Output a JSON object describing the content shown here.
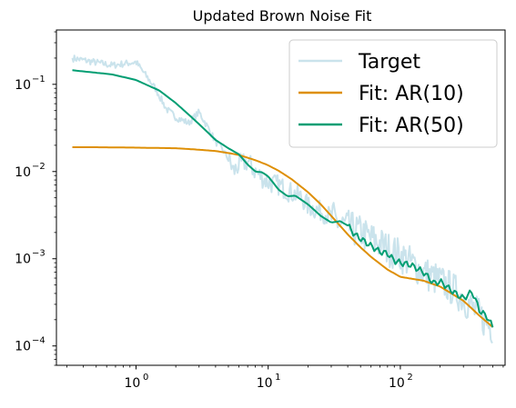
{
  "chart_data": {
    "type": "line",
    "title": "Updated Brown Noise Fit",
    "xlabel": "",
    "ylabel": "",
    "xscale": "log",
    "yscale": "log",
    "xlim": [
      0.25,
      620
    ],
    "ylim": [
      6e-05,
      0.42
    ],
    "x_ticks": [
      {
        "value": 1,
        "label": "10",
        "exp": "0"
      },
      {
        "value": 10,
        "label": "10",
        "exp": "1"
      },
      {
        "value": 100,
        "label": "10",
        "exp": "2"
      }
    ],
    "y_ticks": [
      {
        "value": 0.0001,
        "label": "10",
        "exp": "−4"
      },
      {
        "value": 0.001,
        "label": "10",
        "exp": "−3"
      },
      {
        "value": 0.01,
        "label": "10",
        "exp": "−2"
      },
      {
        "value": 0.1,
        "label": "10",
        "exp": "−1"
      }
    ],
    "grid": false,
    "legend": "top-right",
    "series": [
      {
        "name": "Target",
        "color": "#a6d0e0",
        "opacity": 0.6,
        "noise": true,
        "x": [
          0.33,
          0.66,
          1.0,
          1.4,
          1.7,
          2.0,
          2.5,
          3.0,
          3.5,
          4.0,
          4.5,
          5.0,
          5.5,
          6.0,
          7.0,
          8.0,
          9.0,
          10,
          12,
          14,
          16,
          18,
          20,
          25,
          30,
          35,
          40,
          50,
          60,
          70,
          80,
          100,
          120,
          150,
          200,
          250,
          300,
          400,
          500
        ],
        "values": [
          0.2,
          0.165,
          0.18,
          0.09,
          0.052,
          0.042,
          0.036,
          0.048,
          0.032,
          0.022,
          0.018,
          0.014,
          0.01,
          0.012,
          0.013,
          0.01,
          0.0085,
          0.0075,
          0.007,
          0.006,
          0.0055,
          0.005,
          0.004,
          0.0035,
          0.003,
          0.0025,
          0.0023,
          0.002,
          0.0017,
          0.0015,
          0.0013,
          0.0011,
          0.0009,
          0.0007,
          0.00055,
          0.00045,
          0.00035,
          0.00022,
          0.00016
        ]
      },
      {
        "name": "Fit: AR(10)",
        "color": "#de8f05",
        "opacity": 1,
        "noise": false,
        "x": [
          0.33,
          0.5,
          1,
          2,
          3,
          4,
          5,
          6,
          8,
          10,
          12,
          15,
          20,
          25,
          30,
          40,
          50,
          60,
          80,
          100,
          150,
          200,
          300,
          400,
          500
        ],
        "values": [
          0.019,
          0.019,
          0.0188,
          0.0185,
          0.0178,
          0.0172,
          0.0163,
          0.0155,
          0.0135,
          0.0118,
          0.0102,
          0.0082,
          0.0058,
          0.0042,
          0.0031,
          0.0019,
          0.00135,
          0.00105,
          0.00075,
          0.00062,
          0.00056,
          0.00048,
          0.00033,
          0.00022,
          0.000165
        ]
      },
      {
        "name": "Fit: AR(50)",
        "color": "#029e73",
        "opacity": 1,
        "noise": false,
        "x": [
          0.33,
          0.66,
          1.0,
          1.5,
          2.0,
          2.5,
          3.0,
          3.5,
          4.0,
          5.0,
          6.0,
          7.0,
          8.0,
          9.0,
          10,
          12,
          14,
          16,
          20,
          25,
          30,
          35,
          40,
          45,
          50,
          60,
          70,
          80,
          90,
          100,
          120,
          150,
          180,
          200,
          250,
          300,
          350,
          400,
          450,
          500
        ],
        "values": [
          0.145,
          0.13,
          0.112,
          0.085,
          0.061,
          0.045,
          0.035,
          0.028,
          0.023,
          0.0185,
          0.0158,
          0.012,
          0.01,
          0.0098,
          0.0088,
          0.0062,
          0.0052,
          0.0053,
          0.0042,
          0.0031,
          0.0026,
          0.0027,
          0.0024,
          0.0019,
          0.0017,
          0.0014,
          0.0012,
          0.00115,
          0.00095,
          0.0009,
          0.00085,
          0.0007,
          0.00052,
          0.00055,
          0.00042,
          0.00035,
          0.00042,
          0.00025,
          0.00022,
          0.000165
        ]
      }
    ]
  }
}
